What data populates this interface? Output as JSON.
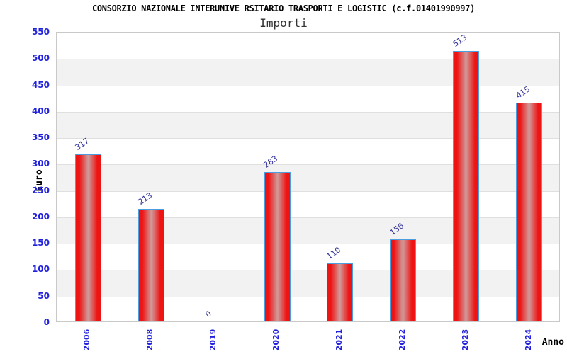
{
  "header": {
    "title": "CONSORZIO NAZIONALE INTERUNIVE RSITARIO TRASPORTI E LOGISTIC (c.f.01401990997)",
    "subtitle": "Importi"
  },
  "chart_data": {
    "type": "bar",
    "title": "CONSORZIO NAZIONALE INTERUNIVE RSITARIO TRASPORTI E LOGISTIC (c.f.01401990997)",
    "subtitle": "Importi",
    "categories": [
      "2006",
      "2008",
      "2019",
      "2020",
      "2021",
      "2022",
      "2023",
      "2024"
    ],
    "values": [
      317,
      213,
      0,
      283,
      110,
      156,
      513,
      415
    ],
    "xlabel": "Anno",
    "ylabel": "Euro",
    "ylim": [
      0,
      550
    ],
    "ytick_step": 50,
    "yticks": [
      0,
      50,
      100,
      150,
      200,
      250,
      300,
      350,
      400,
      450,
      500,
      550
    ],
    "legend": "none",
    "grid": "horizontal-bands-alternating",
    "colors": {
      "bar_fill_edge": "#ee1414",
      "bar_fill_center": "#d09c9c",
      "bar_border": "#4a9ee0",
      "tick_label": "#2222dd",
      "value_label": "#333399",
      "band_gray": "#f2f2f2",
      "gridline": "#dfdfdf",
      "plot_border": "#c9c9c9"
    }
  }
}
